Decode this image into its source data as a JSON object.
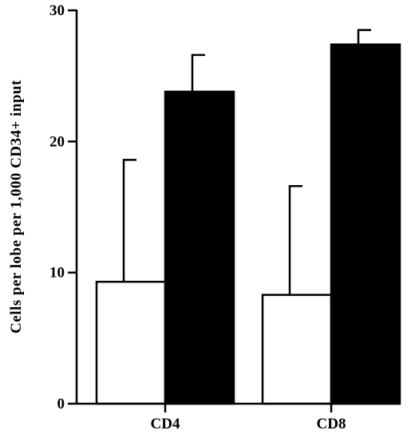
{
  "chart_data": {
    "type": "bar",
    "title": "",
    "xlabel": "",
    "ylabel": "Cells per lobe per 1,000 CD34+ input",
    "ylim": [
      0,
      30
    ],
    "yticks": [
      "0",
      "10",
      "20",
      "30"
    ],
    "categories": [
      "CD4",
      "CD8"
    ],
    "series": [
      {
        "values": [
          9.3,
          8.3
        ],
        "errors": [
          9.3,
          8.3
        ],
        "color": "#ffffff"
      },
      {
        "values": [
          23.8,
          27.4
        ],
        "errors": [
          2.8,
          1.1
        ],
        "color": "#000000"
      }
    ],
    "grid": false,
    "legend": "none"
  }
}
